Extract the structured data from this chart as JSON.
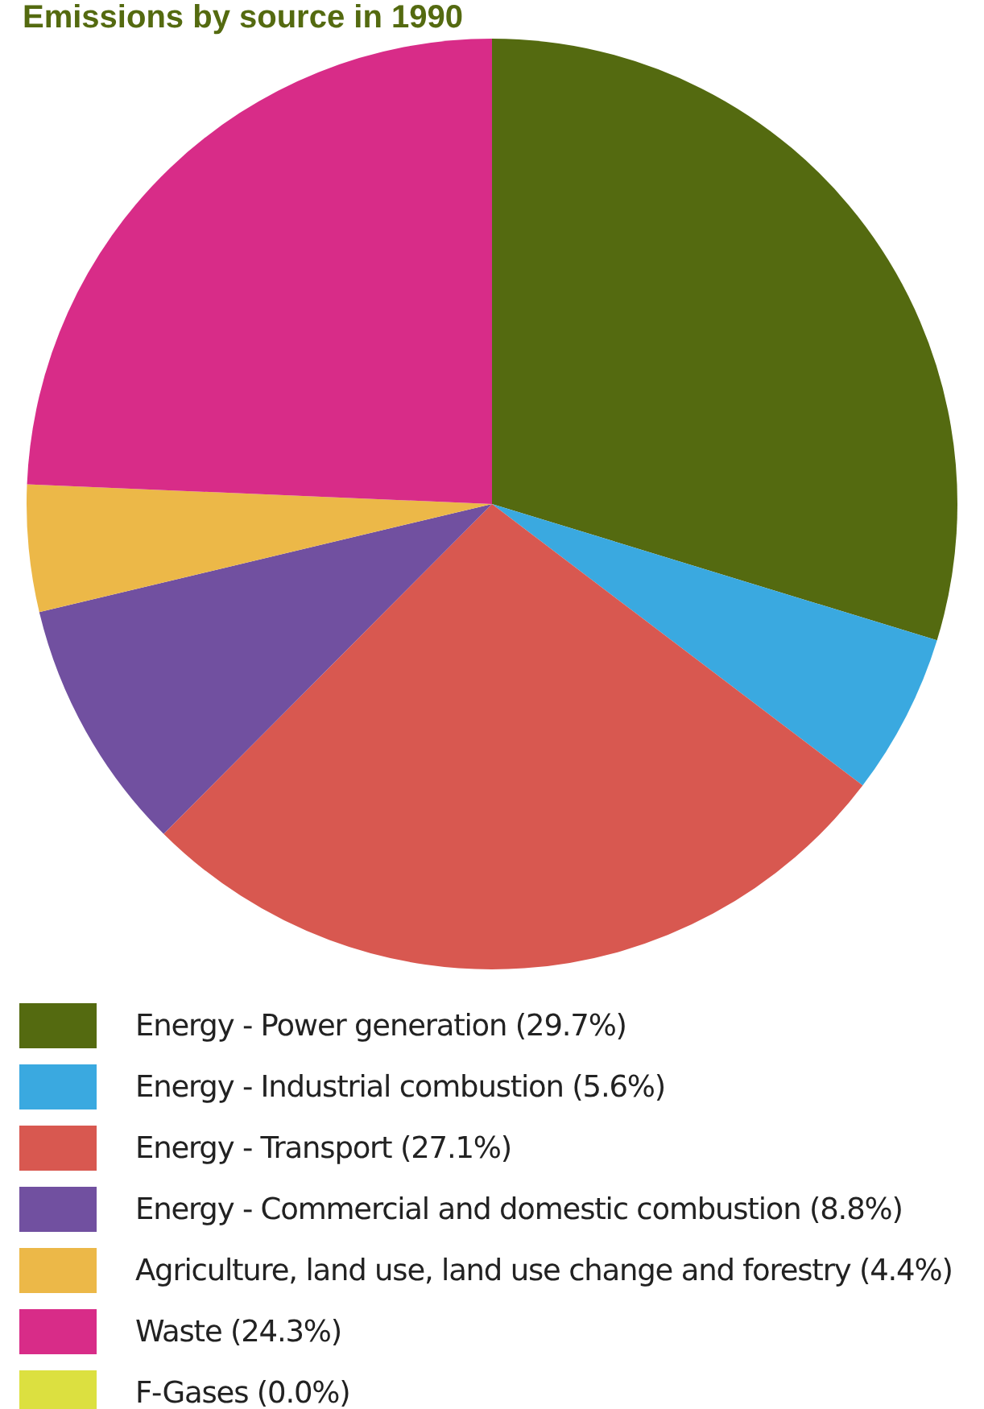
{
  "chart_data": {
    "type": "pie",
    "title": "Emissions by source in 1990",
    "categories": [
      "Energy - Power generation (29.7%)",
      "Energy - Industrial combustion (5.6%)",
      "Energy - Transport (27.1%)",
      "Energy - Commercial and domestic combustion (8.8%)",
      "Agriculture, land use, land use change and forestry (4.4%)",
      "Waste (24.3%)",
      "F-Gases (0.0%)"
    ],
    "values": [
      29.7,
      5.6,
      27.1,
      8.8,
      4.4,
      24.3,
      0.0
    ],
    "colors": [
      "#546a10",
      "#3aa9e0",
      "#d85850",
      "#7150a0",
      "#ecb848",
      "#d82c88",
      "#dce040"
    ],
    "legend": "bottom"
  }
}
